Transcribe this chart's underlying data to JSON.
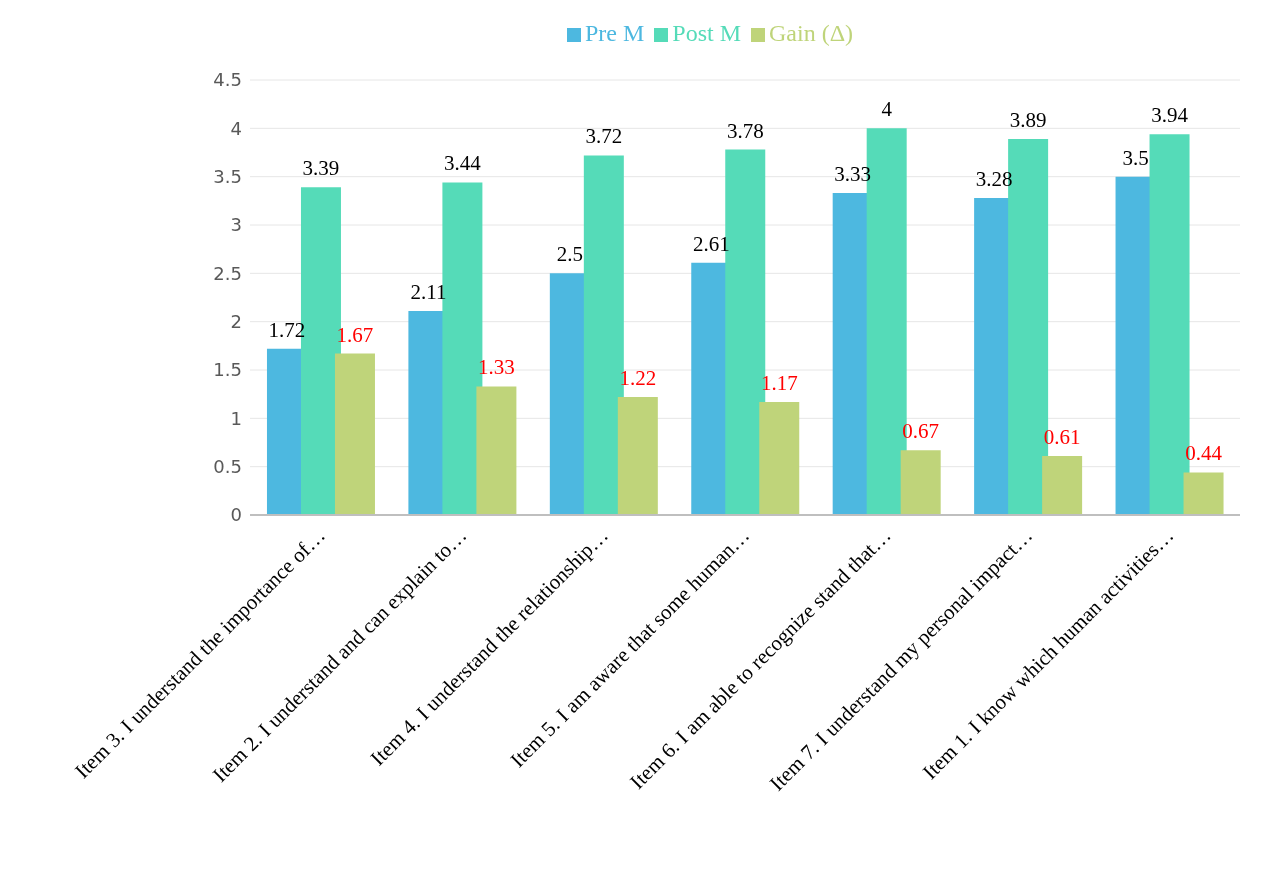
{
  "chart_data": {
    "type": "bar",
    "categories": [
      "Item 3. I understand the importance of…",
      "Item 2. I understand and can explain to…",
      "Item 4. I understand the relationship…",
      "Item 5. I am aware that some human…",
      "Item 6. I am able to recognize stand that…",
      "Item 7. I understand my personal impact…",
      "Item 1. I know which human activities…"
    ],
    "series": [
      {
        "name": "Pre M",
        "color": "#4db8e0",
        "values": [
          1.72,
          2.11,
          2.5,
          2.61,
          3.33,
          3.28,
          3.5
        ]
      },
      {
        "name": "Post M",
        "color": "#55dbb8",
        "values": [
          3.39,
          3.44,
          3.72,
          3.78,
          4,
          3.89,
          3.94
        ]
      },
      {
        "name": "Gain (Δ)",
        "color": "#bfd47a",
        "values": [
          1.67,
          1.33,
          1.22,
          1.17,
          0.67,
          0.61,
          0.44
        ]
      }
    ],
    "ylim": [
      0,
      4.5
    ],
    "yticks": [
      0,
      0.5,
      1,
      1.5,
      2,
      2.5,
      3,
      3.5,
      4,
      4.5
    ],
    "grid": "y",
    "legend": "top",
    "data_labels": true
  }
}
